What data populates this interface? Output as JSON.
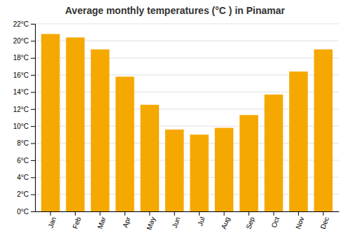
{
  "chart_data": {
    "type": "bar",
    "title": "Average monthly temperatures (°C ) in Pinamar",
    "categories": [
      "Jan",
      "Feb",
      "Mar",
      "Apr",
      "May",
      "Jun",
      "Jul",
      "Aug",
      "Sep",
      "Oct",
      "Nov",
      "Dec"
    ],
    "values": [
      20.8,
      20.4,
      19.0,
      15.8,
      12.5,
      9.6,
      9.0,
      9.8,
      11.3,
      13.7,
      16.4,
      19.0
    ],
    "color": "#F5A800",
    "ylim": [
      0,
      22
    ],
    "yticks": [
      {
        "value": 0,
        "label": "0°C"
      },
      {
        "value": 2,
        "label": "2°C"
      },
      {
        "value": 4,
        "label": "4°C"
      },
      {
        "value": 6,
        "label": "6°C"
      },
      {
        "value": 8,
        "label": "8°C"
      },
      {
        "value": 10,
        "label": "10°C"
      },
      {
        "value": 12,
        "label": "12°C"
      },
      {
        "value": 14,
        "label": "14°C"
      },
      {
        "value": 16,
        "label": "16°C"
      },
      {
        "value": 18,
        "label": "18°C"
      },
      {
        "value": 20,
        "label": "20°C"
      },
      {
        "value": 22,
        "label": "22°C"
      }
    ],
    "grid": true
  }
}
